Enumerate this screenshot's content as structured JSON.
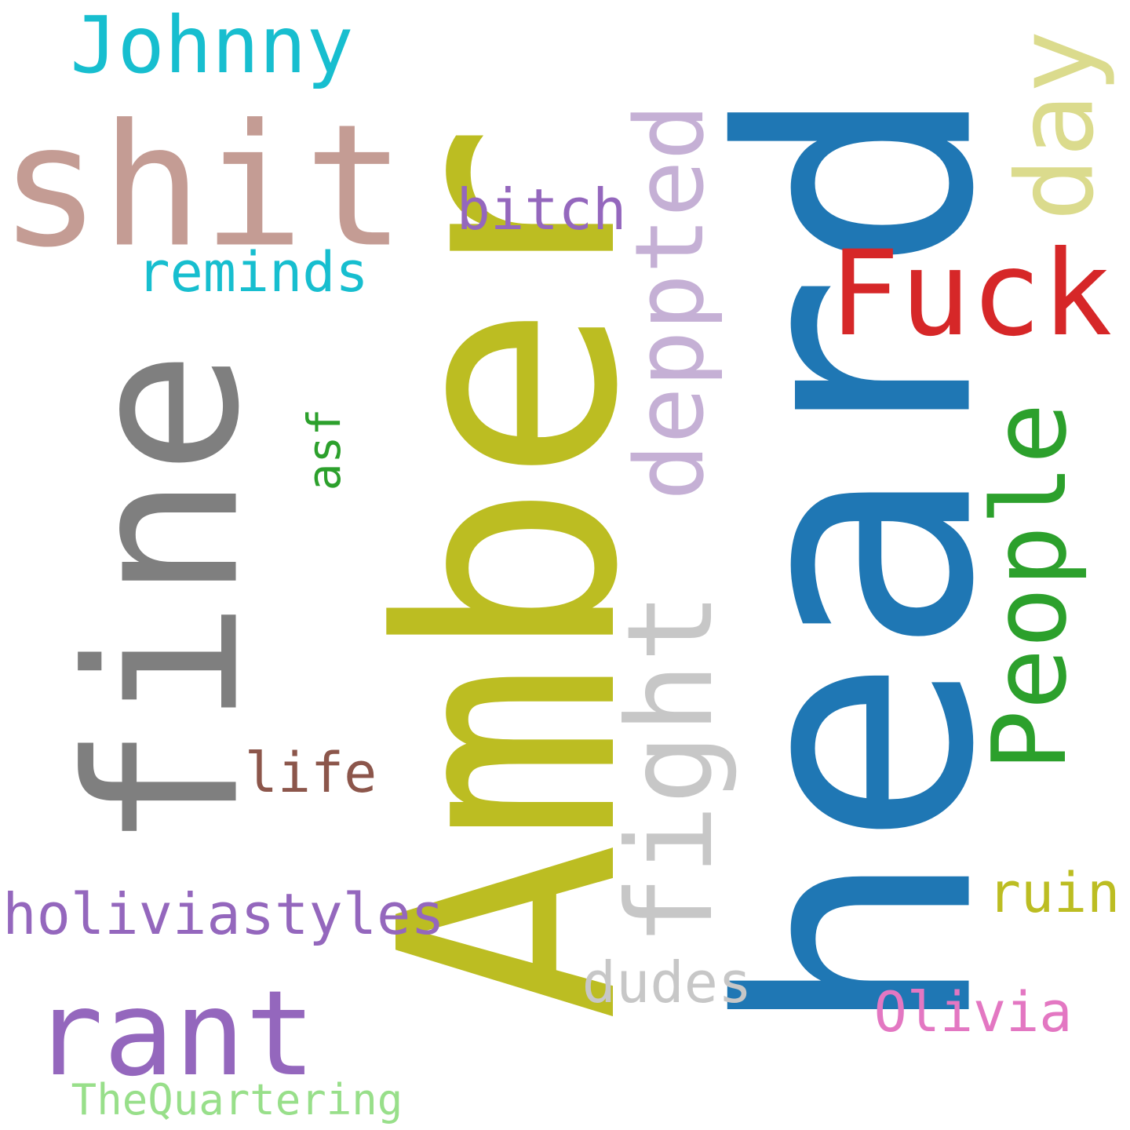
{
  "words": [
    {
      "id": "heard",
      "text": "heard",
      "color": "#1f77b4"
    },
    {
      "id": "Amber",
      "text": "Amber",
      "color": "#bcbd22"
    },
    {
      "id": "fine",
      "text": "fine",
      "color": "#7f7f7f"
    },
    {
      "id": "shit",
      "text": "shit",
      "color": "#c49c94"
    },
    {
      "id": "Johnny",
      "text": "Johnny",
      "color": "#17becf"
    },
    {
      "id": "depp",
      "text": "deppted",
      "color": "#c5b0d5"
    },
    {
      "id": "day",
      "text": "day",
      "color": "#dbdb8d"
    },
    {
      "id": "Fuck",
      "text": "Fuck",
      "color": "#d62728"
    },
    {
      "id": "People",
      "text": "People",
      "color": "#2ca02c"
    },
    {
      "id": "fight",
      "text": "fight",
      "color": "#c7c7c7"
    },
    {
      "id": "bitch",
      "text": "bitch",
      "color": "#9467bd"
    },
    {
      "id": "reminds",
      "text": "reminds",
      "color": "#17becf"
    },
    {
      "id": "asf",
      "text": "asf",
      "color": "#2ca02c"
    },
    {
      "id": "life",
      "text": "life",
      "color": "#8c564b"
    },
    {
      "id": "holiviastyles",
      "text": "holiviastyles",
      "color": "#9467bd"
    },
    {
      "id": "rant",
      "text": "rant",
      "color": "#9467bd"
    },
    {
      "id": "TheQuartering",
      "text": "TheQuartering",
      "color": "#98df8a"
    },
    {
      "id": "dudes",
      "text": "dudes",
      "color": "#c7c7c7"
    },
    {
      "id": "Olivia",
      "text": "Olivia",
      "color": "#e377c2"
    },
    {
      "id": "ruin",
      "text": "ruin",
      "color": "#bcbd22"
    }
  ]
}
